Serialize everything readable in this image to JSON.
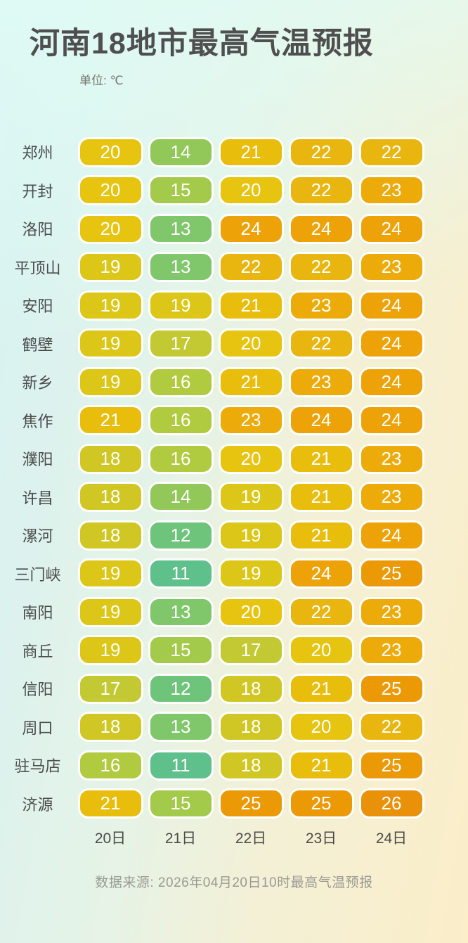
{
  "title": "河南18地市最高气温预报",
  "unit_label": "单位: ℃",
  "source": "数据来源: 2026年04月20日10时最高气温预报",
  "columns": [
    "20日",
    "21日",
    "22日",
    "23日",
    "24日"
  ],
  "rows": [
    {
      "city": "郑州",
      "temps": [
        20,
        14,
        21,
        22,
        22
      ]
    },
    {
      "city": "开封",
      "temps": [
        20,
        15,
        20,
        22,
        23
      ]
    },
    {
      "city": "洛阳",
      "temps": [
        20,
        13,
        24,
        24,
        24
      ]
    },
    {
      "city": "平顶山",
      "temps": [
        19,
        13,
        22,
        22,
        23
      ]
    },
    {
      "city": "安阳",
      "temps": [
        19,
        19,
        21,
        23,
        24
      ]
    },
    {
      "city": "鹤壁",
      "temps": [
        19,
        17,
        20,
        22,
        24
      ]
    },
    {
      "city": "新乡",
      "temps": [
        19,
        16,
        21,
        23,
        24
      ]
    },
    {
      "city": "焦作",
      "temps": [
        21,
        16,
        23,
        24,
        24
      ]
    },
    {
      "city": "濮阳",
      "temps": [
        18,
        16,
        20,
        21,
        23
      ]
    },
    {
      "city": "许昌",
      "temps": [
        18,
        14,
        19,
        21,
        23
      ]
    },
    {
      "city": "漯河",
      "temps": [
        18,
        12,
        19,
        21,
        24
      ]
    },
    {
      "city": "三门峡",
      "temps": [
        19,
        11,
        19,
        24,
        25
      ]
    },
    {
      "city": "南阳",
      "temps": [
        19,
        13,
        20,
        22,
        23
      ]
    },
    {
      "city": "商丘",
      "temps": [
        19,
        15,
        17,
        20,
        23
      ]
    },
    {
      "city": "信阳",
      "temps": [
        17,
        12,
        18,
        21,
        25
      ]
    },
    {
      "city": "周口",
      "temps": [
        18,
        13,
        18,
        20,
        22
      ]
    },
    {
      "city": "驻马店",
      "temps": [
        16,
        11,
        18,
        21,
        25
      ]
    },
    {
      "city": "济源",
      "temps": [
        21,
        15,
        25,
        25,
        26
      ]
    }
  ],
  "temp_colors": {
    "11": "#5ec08b",
    "12": "#6fc47c",
    "13": "#80c66a",
    "14": "#91c859",
    "15": "#a3ca4b",
    "16": "#b0cb3f",
    "17": "#c2c933",
    "18": "#d1c724",
    "19": "#dcc617",
    "20": "#e7c40f",
    "21": "#e9bd0c",
    "22": "#e8b60e",
    "23": "#ecab08",
    "24": "#eda307",
    "25": "#eb9a06",
    "26": "#e89109"
  },
  "background_colors": {
    "left": "#d5f2f4",
    "right": "#fbeec9"
  },
  "text_colors": {
    "title": "#4f4f4f",
    "city": "#4c4c4c",
    "pill_text": "#ffffff",
    "source": "#9a9a94"
  },
  "chart_data": {
    "type": "heatmap",
    "title": "河南18地市最高气温预报",
    "unit": "℃",
    "x": [
      "20日",
      "21日",
      "22日",
      "23日",
      "24日"
    ],
    "y": [
      "郑州",
      "开封",
      "洛阳",
      "平顶山",
      "安阳",
      "鹤壁",
      "新乡",
      "焦作",
      "濮阳",
      "许昌",
      "漯河",
      "三门峡",
      "南阳",
      "商丘",
      "信阳",
      "周口",
      "驻马店",
      "济源"
    ],
    "values": [
      [
        20,
        14,
        21,
        22,
        22
      ],
      [
        20,
        15,
        20,
        22,
        23
      ],
      [
        20,
        13,
        24,
        24,
        24
      ],
      [
        19,
        13,
        22,
        22,
        23
      ],
      [
        19,
        19,
        21,
        23,
        24
      ],
      [
        19,
        17,
        20,
        22,
        24
      ],
      [
        19,
        16,
        21,
        23,
        24
      ],
      [
        21,
        16,
        23,
        24,
        24
      ],
      [
        18,
        16,
        20,
        21,
        23
      ],
      [
        18,
        14,
        19,
        21,
        23
      ],
      [
        18,
        12,
        19,
        21,
        24
      ],
      [
        19,
        11,
        19,
        24,
        25
      ],
      [
        19,
        13,
        20,
        22,
        23
      ],
      [
        19,
        15,
        17,
        20,
        23
      ],
      [
        17,
        12,
        18,
        21,
        25
      ],
      [
        18,
        13,
        18,
        20,
        22
      ],
      [
        16,
        11,
        18,
        21,
        25
      ],
      [
        21,
        15,
        25,
        25,
        26
      ]
    ],
    "value_range": [
      11,
      26
    ],
    "colorscale": "green(cool)-to-orange(warm)",
    "source": "数据来源: 2026年04月20日10时最高气温预报"
  }
}
